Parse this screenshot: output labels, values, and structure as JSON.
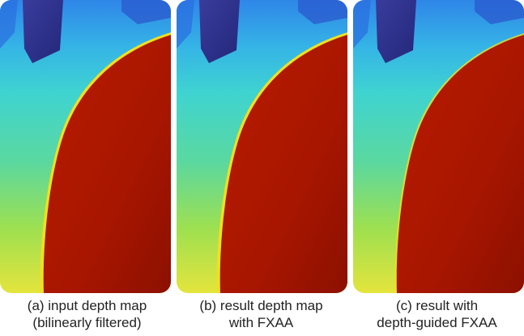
{
  "figure": {
    "panels": [
      {
        "caption_line1": "(a) input depth map",
        "caption_line2": "(bilinearly filtered)"
      },
      {
        "caption_line1": "(b) result depth map",
        "caption_line2": "with FXAA"
      },
      {
        "caption_line1": "(c) result with",
        "caption_line2": "depth-guided FXAA"
      }
    ],
    "colors": {
      "sphere_red": "#b01800",
      "sphere_dark_red": "#8c1000",
      "edge_yellow": "#f0e020",
      "background_blue": "#2f86e8",
      "background_cyan": "#3fd4d0",
      "background_green": "#9ee050",
      "background_yellow": "#e4e43c",
      "object_navy": "#2a2e8c"
    }
  }
}
